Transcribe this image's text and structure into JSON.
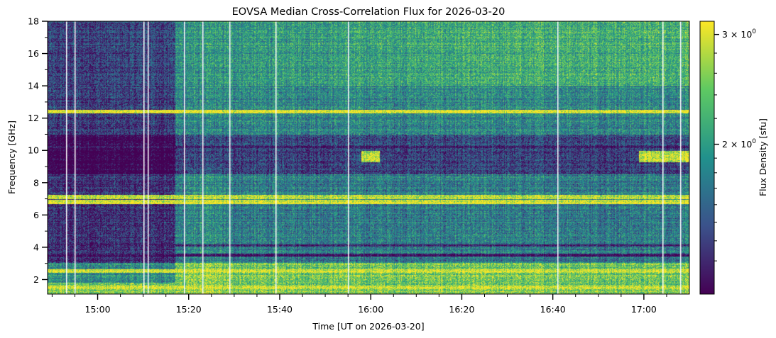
{
  "chart_data": {
    "type": "heatmap",
    "title": "EOVSA Median Cross-Correlation Flux for 2026-03-20",
    "xlabel": "Time [UT on 2026-03-20]",
    "ylabel": "Frequency [GHz]",
    "colorbar_label": "Flux Density [sfu]",
    "colormap": "viridis",
    "colormap_stops": [
      "#440154",
      "#3b528b",
      "#21918c",
      "#5ec962",
      "#fde725"
    ],
    "x_range": [
      "14:49",
      "17:10"
    ],
    "x_ticks": [
      "15:00",
      "15:20",
      "15:40",
      "16:00",
      "16:20",
      "16:40",
      "17:00"
    ],
    "x_tick_values_min": [
      900,
      920,
      940,
      960,
      980,
      1000,
      1020
    ],
    "x_range_min": [
      889,
      1030
    ],
    "y_range": [
      1.1,
      18
    ],
    "y_ticks": [
      2,
      4,
      6,
      8,
      10,
      12,
      14,
      16,
      18
    ],
    "y_tick_labels": [
      "2",
      "4",
      "6",
      "8",
      "10",
      "12",
      "14",
      "16",
      "18"
    ],
    "colorbar_scale": "log",
    "colorbar_range": [
      1.15,
      3.15
    ],
    "colorbar_ticks": [
      {
        "value": 3,
        "mantissa": "3",
        "label_base": "10",
        "label_exp": "0"
      },
      {
        "value": 2,
        "mantissa": "2",
        "label_base": "10",
        "label_exp": "0"
      }
    ],
    "times_symbol": "×",
    "features": {
      "bright_bands_ghz": [
        1.5,
        2.5,
        6.8,
        7.1,
        12.4
      ],
      "dark_bands_ghz": [
        3.5,
        4.1,
        10.2
      ],
      "bright_cluster_9_6ghz_times_min": [
        [
          958,
          962
        ],
        [
          1019,
          1030
        ]
      ],
      "dark_interval_times_min": [
        [
          889,
          917
        ]
      ],
      "gap_lines_times_min": [
        893,
        895,
        910,
        911,
        919,
        923,
        929,
        939,
        955,
        1001,
        1024,
        1028
      ]
    }
  }
}
